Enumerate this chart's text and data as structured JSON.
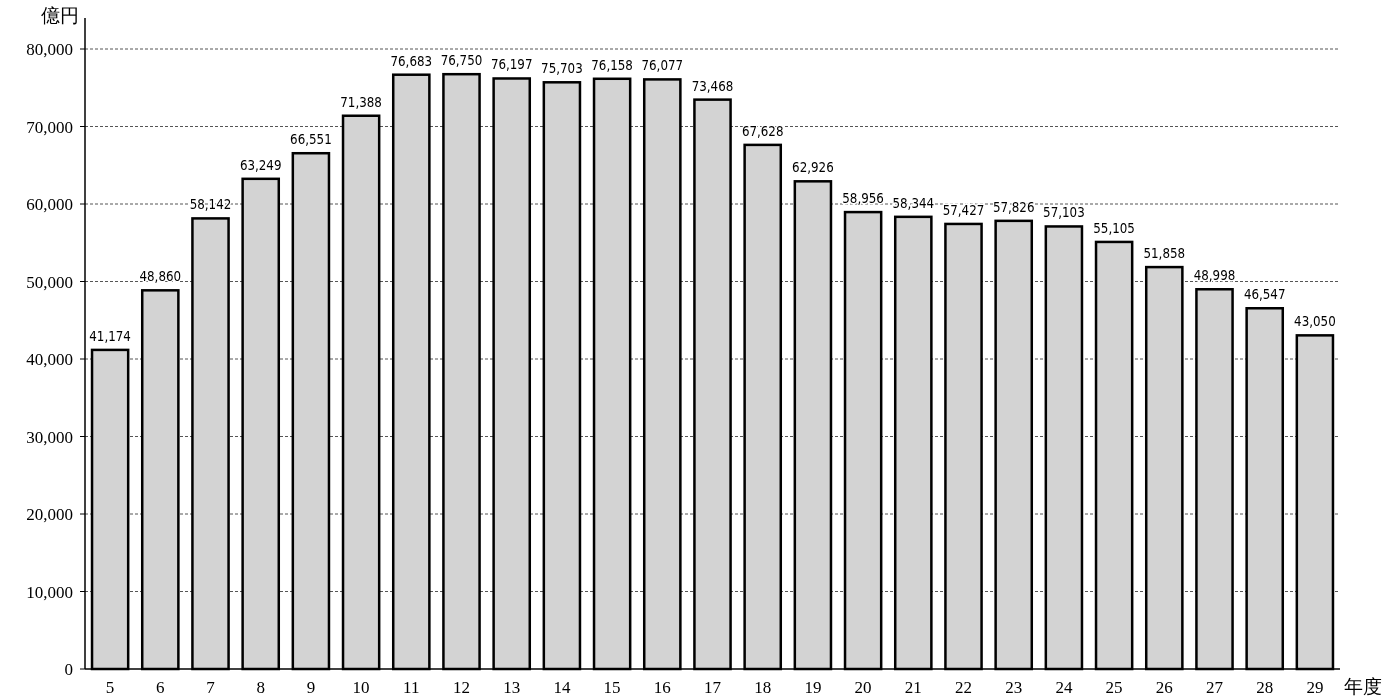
{
  "chart_data": {
    "type": "bar",
    "ylabel": "億円",
    "xlabel": "年度",
    "categories": [
      "5",
      "6",
      "7",
      "8",
      "9",
      "10",
      "11",
      "12",
      "13",
      "14",
      "15",
      "16",
      "17",
      "18",
      "19",
      "20",
      "21",
      "22",
      "23",
      "24",
      "25",
      "26",
      "27",
      "28",
      "29"
    ],
    "values": [
      41174,
      48860,
      58142,
      63249,
      66551,
      71388,
      76683,
      76750,
      76197,
      75703,
      76158,
      76077,
      73468,
      67628,
      62926,
      58956,
      58344,
      57427,
      57826,
      57103,
      55105,
      51858,
      48998,
      46547,
      43050
    ],
    "color": "#d3d3d3",
    "ylim": [
      0,
      84000
    ],
    "yticks": [
      0,
      {
        "value": 10000,
        "label": "10,000"
      },
      {
        "value": 20000,
        "label": "20,000"
      },
      {
        "value": 30000,
        "label": "30,000"
      },
      {
        "value": 40000,
        "label": "40,000"
      },
      {
        "value": 50000,
        "label": "50,000"
      },
      {
        "value": 60000,
        "label": "60,000"
      },
      {
        "value": 70000,
        "label": "70,000"
      },
      {
        "value": 80000,
        "label": "80,000"
      }
    ],
    "grid": "y",
    "value_labels": [
      "41,174",
      "48,860",
      "58,142",
      "63,249",
      "66,551",
      "71,388",
      "76,683",
      "76,750",
      "76,197",
      "75,703",
      "76,158",
      "76,077",
      "73,468",
      "67,628",
      "62,926",
      "58,956",
      "58,344",
      "57,427",
      "57,826",
      "57,103",
      "55,105",
      "51,858",
      "48,998",
      "46,547",
      "43,050"
    ]
  }
}
